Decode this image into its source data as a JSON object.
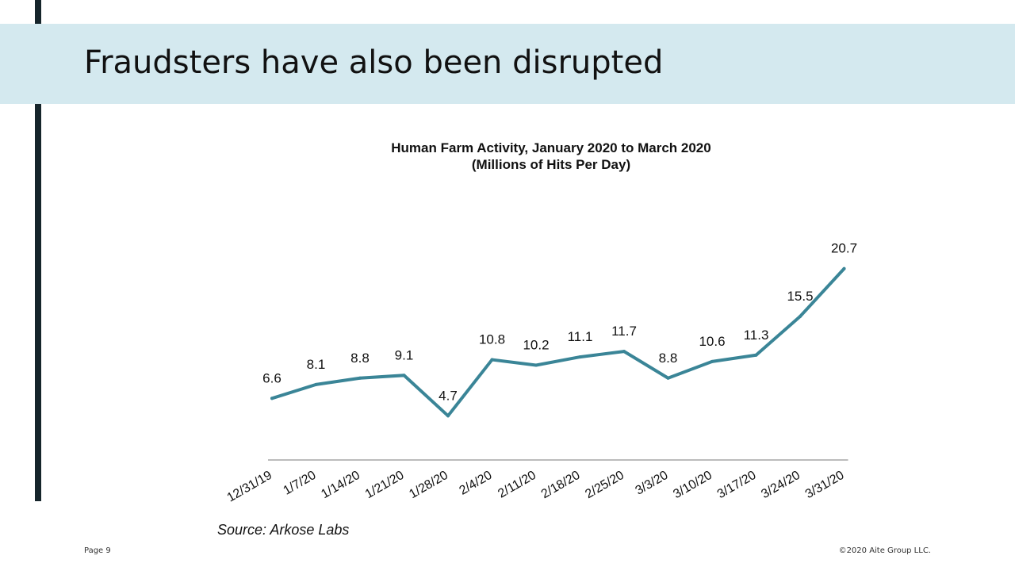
{
  "slide": {
    "title": "Fraudsters have also been disrupted",
    "source": "Source: Arkose Labs",
    "page": "Page 9",
    "copyright": "©2020 Aite Group LLC."
  },
  "colors": {
    "title_band": "#d4e9ef",
    "left_bar": "#16252b",
    "line": "#3a8597",
    "axis": "#a6a6a6"
  },
  "chart_data": {
    "type": "line",
    "title": "Human Farm Activity,  January 2020 to March 2020",
    "subtitle": "(Millions of Hits Per Day)",
    "categories": [
      "12/31/19",
      "1/7/20",
      "1/14/20",
      "1/21/20",
      "1/28/20",
      "2/4/20",
      "2/11/20",
      "2/18/20",
      "2/25/20",
      "3/3/20",
      "3/10/20",
      "3/17/20",
      "3/24/20",
      "3/31/20"
    ],
    "series": [
      {
        "values": [
          6.6,
          8.1,
          8.8,
          9.1,
          4.7,
          10.8,
          10.2,
          11.1,
          11.7,
          8.8,
          10.6,
          11.3,
          15.5,
          20.7
        ],
        "labels": [
          "6.6",
          "8.1",
          "8.8",
          "9.1",
          "4.7",
          "10.8",
          "10.2",
          "11.1",
          "11.7",
          "8.8",
          "10.6",
          "11.3",
          "15.5",
          "20.7"
        ]
      }
    ],
    "ylim": [
      -0.1,
      20.7
    ],
    "grid": false,
    "legend": "none",
    "data_labels": true
  }
}
